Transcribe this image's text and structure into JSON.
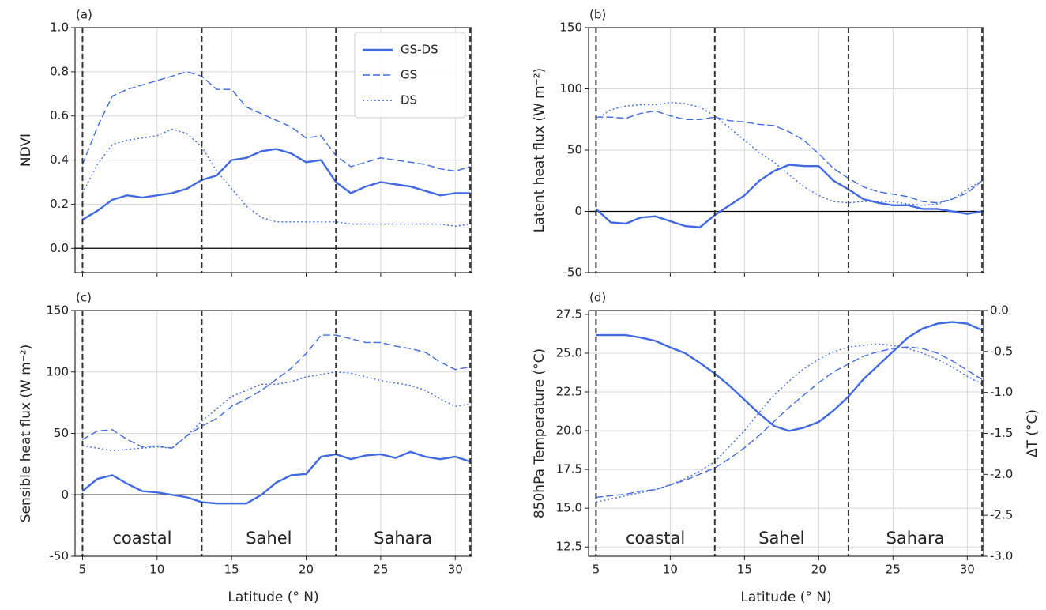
{
  "chart_data": [
    {
      "type": "line",
      "panel_label": "(a)",
      "y_label": "NDVI",
      "x": [
        5,
        6,
        7,
        8,
        9,
        10,
        11,
        12,
        13,
        14,
        15,
        16,
        17,
        18,
        19,
        20,
        21,
        22,
        23,
        24,
        25,
        26,
        27,
        28,
        29,
        30,
        31
      ],
      "series": [
        {
          "name": "GS-DS",
          "color": "#4169e1",
          "linestyle": "solid",
          "values": [
            0.13,
            0.17,
            0.22,
            0.24,
            0.23,
            0.24,
            0.25,
            0.27,
            0.31,
            0.33,
            0.4,
            0.41,
            0.44,
            0.45,
            0.43,
            0.39,
            0.4,
            0.3,
            0.25,
            0.28,
            0.3,
            0.29,
            0.28,
            0.26,
            0.24,
            0.25,
            0.25
          ]
        },
        {
          "name": "GS",
          "color": "#4169e1",
          "linestyle": "dashed",
          "values": [
            0.38,
            0.55,
            0.69,
            0.72,
            0.74,
            0.76,
            0.78,
            0.8,
            0.78,
            0.72,
            0.72,
            0.64,
            0.61,
            0.58,
            0.55,
            0.5,
            0.51,
            0.42,
            0.37,
            0.39,
            0.41,
            0.4,
            0.39,
            0.38,
            0.36,
            0.35,
            0.37
          ]
        },
        {
          "name": "DS",
          "color": "#4169e1",
          "linestyle": "dotted",
          "values": [
            0.25,
            0.38,
            0.47,
            0.49,
            0.5,
            0.51,
            0.54,
            0.52,
            0.46,
            0.35,
            0.27,
            0.19,
            0.14,
            0.12,
            0.12,
            0.12,
            0.12,
            0.12,
            0.11,
            0.11,
            0.11,
            0.11,
            0.11,
            0.11,
            0.11,
            0.1,
            0.11
          ]
        }
      ],
      "xlim": [
        4.5,
        31.1
      ],
      "ylim": [
        -0.11,
        1.0
      ],
      "xticks": [
        5,
        10,
        15,
        20,
        25,
        30
      ],
      "xtick_labels": false,
      "yticks": [
        {
          "value": 0,
          "label": "0.0"
        },
        0.2,
        0.4,
        0.6,
        0.8,
        {
          "value": 1,
          "label": "1.0"
        }
      ],
      "grid": true,
      "hline": 0,
      "vlines": [
        5,
        13,
        22,
        31
      ],
      "legend": "upper right"
    },
    {
      "type": "line",
      "panel_label": "(b)",
      "y_label": "Latent heat flux (W m⁻²)",
      "x": [
        5,
        6,
        7,
        8,
        9,
        10,
        11,
        12,
        13,
        14,
        15,
        16,
        17,
        18,
        19,
        20,
        21,
        22,
        23,
        24,
        25,
        26,
        27,
        28,
        29,
        30,
        31
      ],
      "series": [
        {
          "color": "#4169e1",
          "linestyle": "solid",
          "values": [
            2,
            -9,
            -10,
            -5,
            -4,
            -8,
            -12,
            -13,
            -3,
            5,
            13,
            25,
            33,
            38,
            37,
            37,
            25,
            18,
            10,
            7,
            5,
            5,
            2,
            2,
            0,
            -2,
            0
          ]
        },
        {
          "color": "#4169e1",
          "linestyle": "dashed",
          "values": [
            77,
            77,
            76,
            80,
            82,
            78,
            75,
            75,
            77,
            74,
            73,
            71,
            70,
            65,
            58,
            47,
            35,
            27,
            20,
            16,
            14,
            12,
            8,
            7,
            10,
            15,
            25
          ]
        },
        {
          "color": "#4169e1",
          "linestyle": "dotted",
          "values": [
            75,
            83,
            86,
            87,
            87,
            89,
            88,
            85,
            78,
            68,
            58,
            48,
            40,
            30,
            20,
            13,
            8,
            7,
            8,
            8,
            8,
            6,
            5,
            6,
            10,
            18,
            25
          ]
        }
      ],
      "xlim": [
        4.5,
        31.1
      ],
      "ylim": [
        -50,
        150
      ],
      "xticks": [
        5,
        10,
        15,
        20,
        25,
        30
      ],
      "xtick_labels": false,
      "yticks": [
        -50,
        0,
        50,
        100,
        150
      ],
      "grid": true,
      "hline": 0,
      "vlines": [
        5,
        13,
        22,
        31
      ]
    },
    {
      "type": "line",
      "panel_label": "(c)",
      "y_label": "Sensible heat flux (W m⁻²)",
      "x_label": "Latitude (° N)",
      "x": [
        5,
        6,
        7,
        8,
        9,
        10,
        11,
        12,
        13,
        14,
        15,
        16,
        17,
        18,
        19,
        20,
        21,
        22,
        23,
        24,
        25,
        26,
        27,
        28,
        29,
        30,
        31
      ],
      "series": [
        {
          "color": "#4169e1",
          "linestyle": "solid",
          "values": [
            3,
            13,
            16,
            9,
            3,
            2,
            0,
            -2,
            -6,
            -7,
            -7,
            -7,
            0,
            10,
            16,
            17,
            31,
            33,
            29,
            32,
            33,
            30,
            35,
            31,
            29,
            31,
            27
          ]
        },
        {
          "color": "#4169e1",
          "linestyle": "dashed",
          "values": [
            45,
            52,
            53,
            45,
            39,
            40,
            38,
            48,
            56,
            62,
            72,
            78,
            85,
            94,
            103,
            115,
            130,
            130,
            127,
            124,
            124,
            121,
            119,
            116,
            108,
            102,
            104
          ]
        },
        {
          "color": "#4169e1",
          "linestyle": "dotted",
          "values": [
            40,
            38,
            36,
            37,
            38,
            39,
            38,
            48,
            60,
            70,
            80,
            85,
            90,
            90,
            92,
            96,
            98,
            100,
            99,
            96,
            93,
            91,
            89,
            85,
            78,
            72,
            74
          ]
        }
      ],
      "xlim": [
        4.5,
        31.1
      ],
      "ylim": [
        -50,
        150
      ],
      "xticks": [
        5,
        10,
        15,
        20,
        25,
        30
      ],
      "xtick_labels": true,
      "yticks": [
        -50,
        0,
        50,
        100,
        150
      ],
      "grid": true,
      "hline": 0,
      "vlines": [
        5,
        13,
        22,
        31
      ],
      "annotations": [
        "coastal",
        "Sahel",
        "Sahara"
      ]
    },
    {
      "type": "line",
      "panel_label": "(d)",
      "y_label": "850hPa Temperature (°C)",
      "y2_label": "ΔT (°C)",
      "x_label": "Latitude (° N)",
      "x": [
        5,
        6,
        7,
        8,
        9,
        10,
        11,
        12,
        13,
        14,
        15,
        16,
        17,
        18,
        19,
        20,
        21,
        22,
        23,
        24,
        25,
        26,
        27,
        28,
        29,
        30,
        31
      ],
      "series": [
        {
          "color": "#4169e1",
          "linestyle": "solid",
          "axis": "y2",
          "values": [
            -0.3,
            -0.3,
            -0.3,
            -0.33,
            -0.37,
            -0.45,
            -0.52,
            -0.64,
            -0.77,
            -0.92,
            -1.09,
            -1.26,
            -1.41,
            -1.47,
            -1.43,
            -1.36,
            -1.22,
            -1.05,
            -0.84,
            -0.67,
            -0.5,
            -0.33,
            -0.22,
            -0.16,
            -0.14,
            -0.16,
            -0.24
          ]
        },
        {
          "color": "#4169e1",
          "linestyle": "dashed",
          "values": [
            15.7,
            15.8,
            15.9,
            16.1,
            16.2,
            16.5,
            16.8,
            17.2,
            17.6,
            18.2,
            18.9,
            19.7,
            20.6,
            21.5,
            22.3,
            23.1,
            23.8,
            24.3,
            24.8,
            25.1,
            25.3,
            25.4,
            25.3,
            25.0,
            24.5,
            23.9,
            23.3
          ]
        },
        {
          "color": "#4169e1",
          "linestyle": "dotted",
          "values": [
            15.4,
            15.6,
            15.8,
            16.0,
            16.2,
            16.5,
            16.9,
            17.4,
            18.0,
            19.0,
            20.0,
            21.2,
            22.3,
            23.2,
            24.0,
            24.6,
            25.1,
            25.4,
            25.5,
            25.6,
            25.5,
            25.3,
            25.0,
            24.6,
            24.1,
            23.5,
            23.0
          ]
        }
      ],
      "xlim": [
        4.5,
        31.1
      ],
      "ylim": [
        11.9,
        27.75
      ],
      "y2lim": [
        -3.0,
        0.0
      ],
      "xticks": [
        5,
        10,
        15,
        20,
        25,
        30
      ],
      "xtick_labels": true,
      "yticks": [
        12.5,
        {
          "value": 15,
          "label": "15.0"
        },
        17.5,
        {
          "value": 20,
          "label": "20.0"
        },
        22.5,
        {
          "value": 25,
          "label": "25.0"
        },
        27.5
      ],
      "y2ticks": [
        {
          "value": -3,
          "label": "-3.0"
        },
        -2.5,
        {
          "value": -2,
          "label": "-2.0"
        },
        -1.5,
        {
          "value": -1,
          "label": "-1.0"
        },
        -0.5,
        {
          "value": 0,
          "label": "0.0"
        }
      ],
      "grid": true,
      "vlines": [
        5,
        13,
        22,
        31
      ],
      "annotations": [
        "coastal",
        "Sahel",
        "Sahara"
      ]
    }
  ]
}
